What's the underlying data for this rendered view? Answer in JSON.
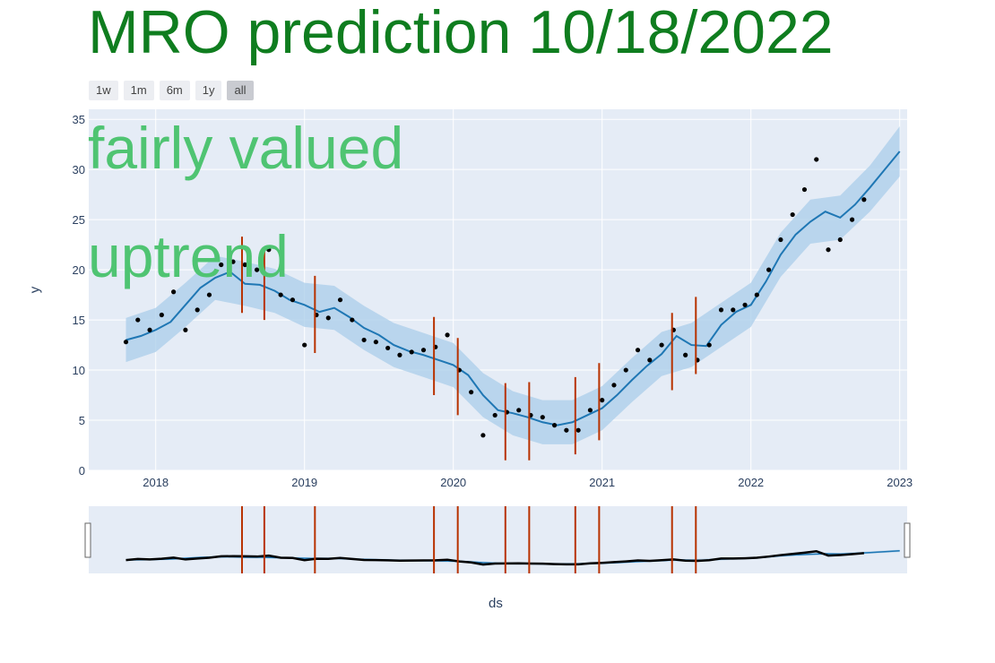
{
  "page": {
    "title": "MRO prediction 10/18/2022",
    "annotations": [
      "fairly valued",
      "uptrend"
    ]
  },
  "range_selector": {
    "buttons": [
      "1w",
      "1m",
      "6m",
      "1y",
      "all"
    ],
    "active": "all"
  },
  "colors": {
    "title": "#0f7d1f",
    "annotation": "#4fc472",
    "plot_bg": "#e5ecf6",
    "forecast_line": "#1f77b4",
    "uncertainty_band": "#a9cde9",
    "observed_points": "#000000",
    "changepoints": "#b83200"
  },
  "chart_data": {
    "type": "line",
    "xlabel": "ds",
    "ylabel": "y",
    "x_ticks": [
      "2018",
      "2019",
      "2020",
      "2021",
      "2022",
      "2023"
    ],
    "y_ticks": [
      0,
      5,
      10,
      15,
      20,
      25,
      30,
      35
    ],
    "xlim": [
      2017.55,
      2023.05
    ],
    "ylim": [
      0,
      36
    ],
    "grid": true,
    "series": [
      {
        "name": "",
        "role": "forecast",
        "x": [
          2017.8,
          2017.9,
          2018.0,
          2018.1,
          2018.2,
          2018.3,
          2018.4,
          2018.5,
          2018.6,
          2018.7,
          2018.8,
          2018.9,
          2019.0,
          2019.1,
          2019.2,
          2019.3,
          2019.4,
          2019.5,
          2019.6,
          2019.7,
          2019.8,
          2019.9,
          2020.0,
          2020.1,
          2020.2,
          2020.3,
          2020.4,
          2020.5,
          2020.6,
          2020.7,
          2020.8,
          2020.9,
          2021.0,
          2021.1,
          2021.2,
          2021.3,
          2021.4,
          2021.5,
          2021.6,
          2021.7,
          2021.8,
          2021.9,
          2022.0,
          2022.1,
          2022.2,
          2022.3,
          2022.4,
          2022.5,
          2022.6,
          2022.7,
          2022.8,
          2022.9,
          2023.0
        ],
        "y": [
          13.0,
          13.4,
          14.0,
          14.8,
          16.5,
          18.2,
          19.2,
          19.8,
          18.6,
          18.5,
          17.9,
          17.0,
          16.5,
          15.8,
          16.2,
          15.3,
          14.2,
          13.5,
          12.5,
          11.9,
          11.5,
          11.0,
          10.5,
          9.5,
          7.5,
          6.0,
          5.7,
          5.3,
          4.8,
          4.5,
          4.8,
          5.5,
          6.2,
          7.5,
          9.0,
          10.4,
          11.6,
          13.4,
          12.5,
          12.4,
          14.5,
          15.8,
          16.5,
          18.8,
          21.5,
          23.5,
          24.8,
          25.8,
          25.2,
          26.5,
          28.2,
          30.0,
          31.8
        ]
      },
      {
        "name": "",
        "role": "uncertainty_band",
        "x": [
          2017.8,
          2018.0,
          2018.2,
          2018.4,
          2018.6,
          2018.8,
          2019.0,
          2019.2,
          2019.4,
          2019.6,
          2019.8,
          2020.0,
          2020.2,
          2020.4,
          2020.6,
          2020.8,
          2021.0,
          2021.2,
          2021.4,
          2021.6,
          2021.8,
          2022.0,
          2022.2,
          2022.4,
          2022.6,
          2022.8,
          2023.0
        ],
        "lower": [
          10.8,
          11.8,
          14.3,
          17.0,
          16.4,
          15.7,
          14.3,
          14.0,
          12.0,
          10.3,
          9.3,
          8.3,
          5.3,
          3.5,
          2.6,
          2.6,
          4.0,
          6.8,
          9.4,
          10.3,
          12.3,
          14.3,
          19.3,
          22.6,
          23.0,
          25.8,
          29.3
        ],
        "upper": [
          15.2,
          16.2,
          18.7,
          21.4,
          20.8,
          20.1,
          18.7,
          18.4,
          16.4,
          14.7,
          13.7,
          12.7,
          9.7,
          7.9,
          7.0,
          7.0,
          8.4,
          11.2,
          13.8,
          14.7,
          16.7,
          18.7,
          23.7,
          27.0,
          27.4,
          30.4,
          34.3
        ]
      },
      {
        "name": "",
        "role": "observed",
        "x": [
          2017.8,
          2017.88,
          2017.96,
          2018.04,
          2018.12,
          2018.2,
          2018.28,
          2018.36,
          2018.44,
          2018.52,
          2018.6,
          2018.68,
          2018.76,
          2018.84,
          2018.92,
          2019.0,
          2019.08,
          2019.16,
          2019.24,
          2019.32,
          2019.4,
          2019.48,
          2019.56,
          2019.64,
          2019.72,
          2019.8,
          2019.88,
          2019.96,
          2020.04,
          2020.12,
          2020.2,
          2020.28,
          2020.36,
          2020.44,
          2020.52,
          2020.6,
          2020.68,
          2020.76,
          2020.84,
          2020.92,
          2021.0,
          2021.08,
          2021.16,
          2021.24,
          2021.32,
          2021.4,
          2021.48,
          2021.56,
          2021.64,
          2021.72,
          2021.8,
          2021.88,
          2021.96,
          2022.04,
          2022.12,
          2022.2,
          2022.28,
          2022.36,
          2022.44,
          2022.52,
          2022.6,
          2022.68,
          2022.76
        ],
        "y": [
          12.8,
          15.0,
          14.0,
          15.5,
          17.8,
          14.0,
          16.0,
          17.5,
          20.5,
          20.8,
          20.5,
          20.0,
          22.0,
          17.5,
          17.0,
          12.5,
          15.5,
          15.2,
          17.0,
          15.0,
          13.0,
          12.8,
          12.2,
          11.5,
          11.8,
          12.0,
          12.3,
          13.5,
          10.0,
          7.8,
          3.5,
          5.5,
          5.8,
          6.0,
          5.5,
          5.3,
          4.5,
          4.0,
          4.0,
          6.0,
          7.0,
          8.5,
          10.0,
          12.0,
          11.0,
          12.5,
          14.0,
          11.5,
          11.0,
          12.5,
          16.0,
          16.0,
          16.5,
          17.5,
          20.0,
          23.0,
          25.5,
          28.0,
          31.0,
          22.0,
          23.0,
          25.0,
          27.0
        ]
      }
    ],
    "changepoints": [
      {
        "x": 2018.58,
        "low": 15.7,
        "high": 23.3
      },
      {
        "x": 2018.73,
        "low": 15.0,
        "high": 22.2
      },
      {
        "x": 2019.07,
        "low": 11.7,
        "high": 19.4
      },
      {
        "x": 2019.87,
        "low": 7.5,
        "high": 15.3
      },
      {
        "x": 2020.03,
        "low": 5.5,
        "high": 13.2
      },
      {
        "x": 2020.35,
        "low": 1.0,
        "high": 8.7
      },
      {
        "x": 2020.51,
        "low": 1.0,
        "high": 8.8
      },
      {
        "x": 2020.82,
        "low": 1.6,
        "high": 9.3
      },
      {
        "x": 2020.98,
        "low": 3.0,
        "high": 10.7
      },
      {
        "x": 2021.47,
        "low": 8.0,
        "high": 15.7
      },
      {
        "x": 2021.63,
        "low": 9.6,
        "high": 17.3
      }
    ]
  }
}
